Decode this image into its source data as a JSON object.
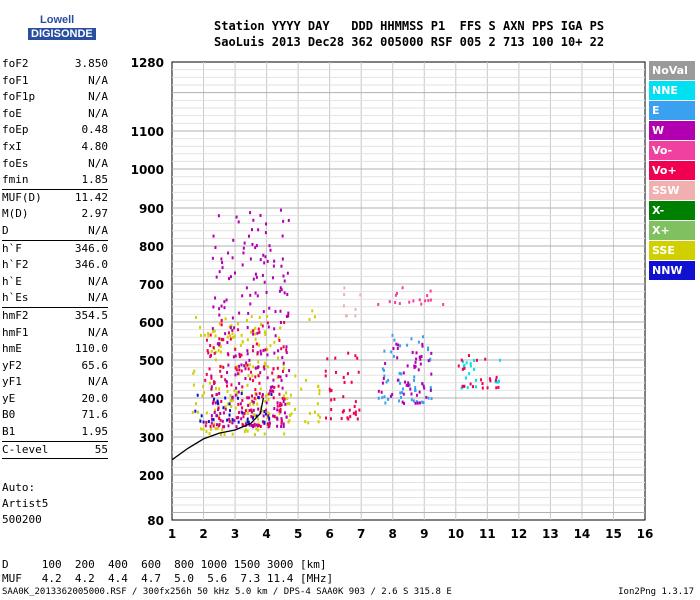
{
  "logo": {
    "line1": "Lowell",
    "line2": "DIGISONDE"
  },
  "header": {
    "row1": "Station YYYY DAY   DDD HHMMSS P1  FFS S AXN PPS IGA PS",
    "row2": "SaoLuis 2013 Dec28 362 005000 RSF 005 2 713 100 10+ 22"
  },
  "params_group1": [
    {
      "k": "foF2",
      "v": "3.850"
    },
    {
      "k": "foF1",
      "v": "N/A"
    },
    {
      "k": "foF1p",
      "v": "N/A"
    },
    {
      "k": "foE",
      "v": "N/A"
    },
    {
      "k": "foEp",
      "v": "0.48"
    },
    {
      "k": "fxI",
      "v": "4.80"
    },
    {
      "k": "foEs",
      "v": "N/A"
    },
    {
      "k": "fmin",
      "v": "1.85"
    }
  ],
  "params_group2": [
    {
      "k": "MUF(D)",
      "v": "11.42"
    },
    {
      "k": "M(D)",
      "v": "2.97"
    },
    {
      "k": "D",
      "v": "N/A"
    }
  ],
  "params_group3": [
    {
      "k": "h`F",
      "v": "346.0"
    },
    {
      "k": "h`F2",
      "v": "346.0"
    },
    {
      "k": "h`E",
      "v": "N/A"
    },
    {
      "k": "h`Es",
      "v": "N/A"
    }
  ],
  "params_group4": [
    {
      "k": "hmF2",
      "v": "354.5"
    },
    {
      "k": "hmF1",
      "v": "N/A"
    },
    {
      "k": "hmE",
      "v": "110.0"
    },
    {
      "k": "yF2",
      "v": "65.6"
    },
    {
      "k": "yF1",
      "v": "N/A"
    },
    {
      "k": "yE",
      "v": "20.0"
    },
    {
      "k": "B0",
      "v": "71.6"
    },
    {
      "k": "B1",
      "v": "1.95"
    }
  ],
  "params_group5": [
    {
      "k": "C-level",
      "v": "55"
    }
  ],
  "auto": {
    "l1": "Auto:",
    "l2": "Artist5",
    "l3": "500200"
  },
  "legend": [
    {
      "label": "NoVal",
      "color": "#9a9a9a"
    },
    {
      "label": "NNE",
      "color": "#00e0f0"
    },
    {
      "label": "E",
      "color": "#3aa0f0"
    },
    {
      "label": "W",
      "color": "#b000b0"
    },
    {
      "label": "Vo-",
      "color": "#f040a0"
    },
    {
      "label": "Vo+",
      "color": "#f00050"
    },
    {
      "label": "SSW",
      "color": "#f0b0b0"
    },
    {
      "label": "X-",
      "color": "#008000"
    },
    {
      "label": "X+",
      "color": "#80c060"
    },
    {
      "label": "SSE",
      "color": "#d0d000"
    },
    {
      "label": "NNW",
      "color": "#1010d0"
    }
  ],
  "bottom": {
    "row1": "D     100  200  400  600  800 1000 1500 3000 [km]",
    "row2": "MUF   4.2  4.2  4.4  4.7  5.0  5.6  7.3 11.4 [MHz]"
  },
  "footer": {
    "left": "SAA0K_2013362005000.RSF / 300fx256h 50 kHz 5.0 km / DPS-4 SAA0K 903 / 2.6 S 315.8 E",
    "right": "Ion2Png 1.3.17"
  },
  "chart_data": {
    "type": "scatter",
    "x_ticks": [
      1,
      2,
      3,
      4,
      5,
      6,
      7,
      8,
      9,
      10,
      11,
      12,
      13,
      14,
      15,
      16
    ],
    "y_ticks": [
      80,
      200,
      300,
      400,
      500,
      600,
      700,
      800,
      900,
      1000,
      1100,
      1280
    ],
    "xlim": [
      1,
      16
    ],
    "ylim": [
      80,
      1280
    ],
    "grid": true,
    "clusters": [
      {
        "x0": 1.6,
        "x1": 4.6,
        "y0": 310,
        "y1": 620,
        "color": "#d0d000"
      },
      {
        "x0": 2.2,
        "x1": 4.7,
        "y0": 330,
        "y1": 900,
        "color": "#b000b0"
      },
      {
        "x0": 2.0,
        "x1": 4.6,
        "y0": 330,
        "y1": 620,
        "color": "#f00050"
      },
      {
        "x0": 1.7,
        "x1": 4.2,
        "y0": 340,
        "y1": 420,
        "color": "#1010d0"
      },
      {
        "x0": 2.0,
        "x1": 4.0,
        "y0": 560,
        "y1": 585,
        "color": "#d0d000"
      },
      {
        "x0": 4.6,
        "x1": 5.7,
        "y0": 340,
        "y1": 470,
        "color": "#d0d000"
      },
      {
        "x0": 5.2,
        "x1": 5.6,
        "y0": 610,
        "y1": 660,
        "color": "#d0d000"
      },
      {
        "x0": 5.8,
        "x1": 7.0,
        "y0": 350,
        "y1": 530,
        "color": "#f00050"
      },
      {
        "x0": 6.4,
        "x1": 7.0,
        "y0": 620,
        "y1": 700,
        "color": "#f0b0b0"
      },
      {
        "x0": 7.5,
        "x1": 9.2,
        "y0": 390,
        "y1": 570,
        "color": "#3aa0f0"
      },
      {
        "x0": 7.5,
        "x1": 9.2,
        "y0": 390,
        "y1": 570,
        "color": "#b000b0"
      },
      {
        "x0": 7.5,
        "x1": 9.6,
        "y0": 650,
        "y1": 700,
        "color": "#f040a0"
      },
      {
        "x0": 10.0,
        "x1": 11.4,
        "y0": 430,
        "y1": 520,
        "color": "#00e0f0"
      },
      {
        "x0": 10.0,
        "x1": 11.4,
        "y0": 430,
        "y1": 520,
        "color": "#f00050"
      }
    ],
    "profile_curve": [
      [
        1.0,
        240
      ],
      [
        1.5,
        270
      ],
      [
        2.0,
        295
      ],
      [
        2.5,
        310
      ],
      [
        3.0,
        318
      ],
      [
        3.5,
        335
      ],
      [
        3.8,
        360
      ],
      [
        3.9,
        400
      ]
    ]
  }
}
